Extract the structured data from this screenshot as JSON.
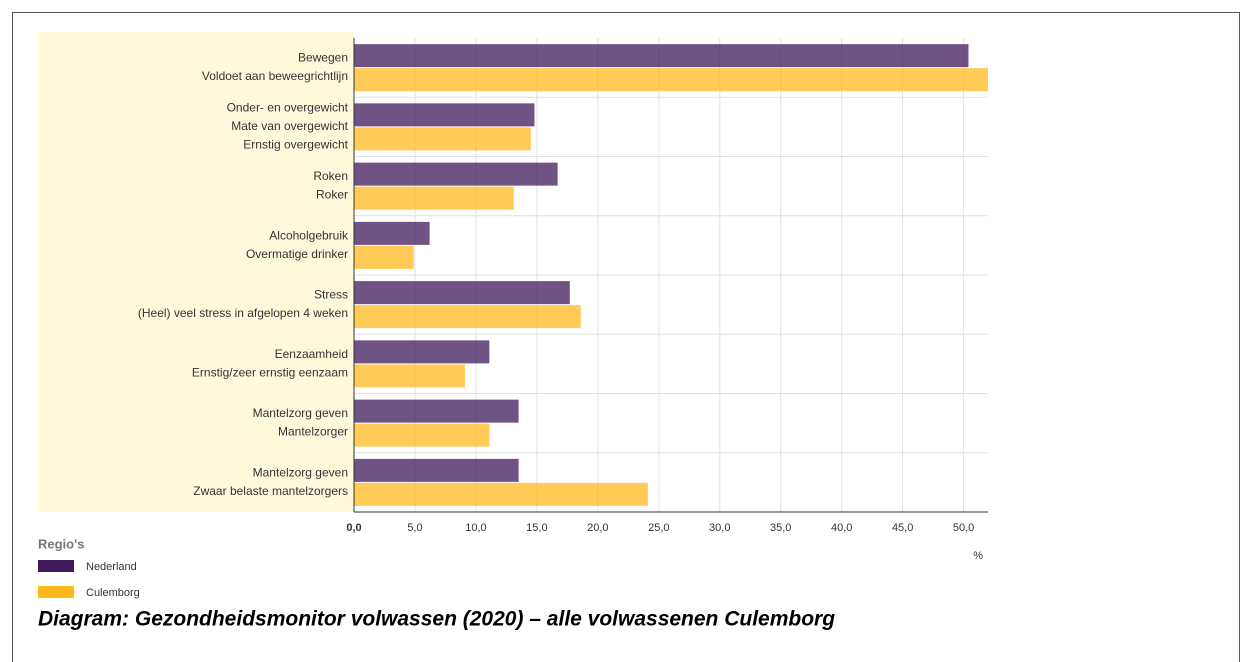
{
  "chart_data": {
    "type": "bar",
    "orientation": "horizontal",
    "groups": [
      {
        "labels": [
          "Bewegen",
          "Voldoet aan beweegrichtlijn"
        ]
      },
      {
        "labels": [
          "Onder- en overgewicht",
          "Mate van overgewicht",
          "Ernstig overgewicht"
        ]
      },
      {
        "labels": [
          "Roken",
          "Roker"
        ]
      },
      {
        "labels": [
          "Alcoholgebruik",
          "Overmatige drinker"
        ]
      },
      {
        "labels": [
          "Stress",
          "(Heel) veel stress in afgelopen 4 weken"
        ]
      },
      {
        "labels": [
          "Eenzaamheid",
          "Ernstig/zeer ernstig eenzaam"
        ]
      },
      {
        "labels": [
          "Mantelzorg geven",
          "Mantelzorger"
        ]
      },
      {
        "labels": [
          "Mantelzorg geven",
          "Zwaar belaste mantelzorgers"
        ]
      }
    ],
    "series": [
      {
        "name": "Nederland",
        "color": "#3f1a5c",
        "values": [
          50.4,
          14.8,
          16.7,
          6.2,
          17.7,
          11.1,
          13.5,
          13.5
        ]
      },
      {
        "name": "Culemborg",
        "color": "#ffb81c",
        "values": [
          52.0,
          14.5,
          13.1,
          4.9,
          18.6,
          9.1,
          11.1,
          24.1
        ]
      }
    ],
    "xlim": [
      0,
      52
    ],
    "xticks": [
      {
        "value": 0,
        "label": "0,0"
      },
      {
        "value": 5,
        "label": "5,0"
      },
      {
        "value": 10,
        "label": "10,0"
      },
      {
        "value": 15,
        "label": "15,0"
      },
      {
        "value": 20,
        "label": "20,0"
      },
      {
        "value": 25,
        "label": "25,0"
      },
      {
        "value": 30,
        "label": "30,0"
      },
      {
        "value": 35,
        "label": "35,0"
      },
      {
        "value": 40,
        "label": "40,0"
      },
      {
        "value": 45,
        "label": "45,0"
      },
      {
        "value": 50,
        "label": "50,0"
      }
    ],
    "xlabel": "%",
    "legend_title": "Regio's",
    "grid": true,
    "caption": "Diagram: Gezondheidsmonitor volwassen (2020) – alle volwassenen Culemborg"
  }
}
